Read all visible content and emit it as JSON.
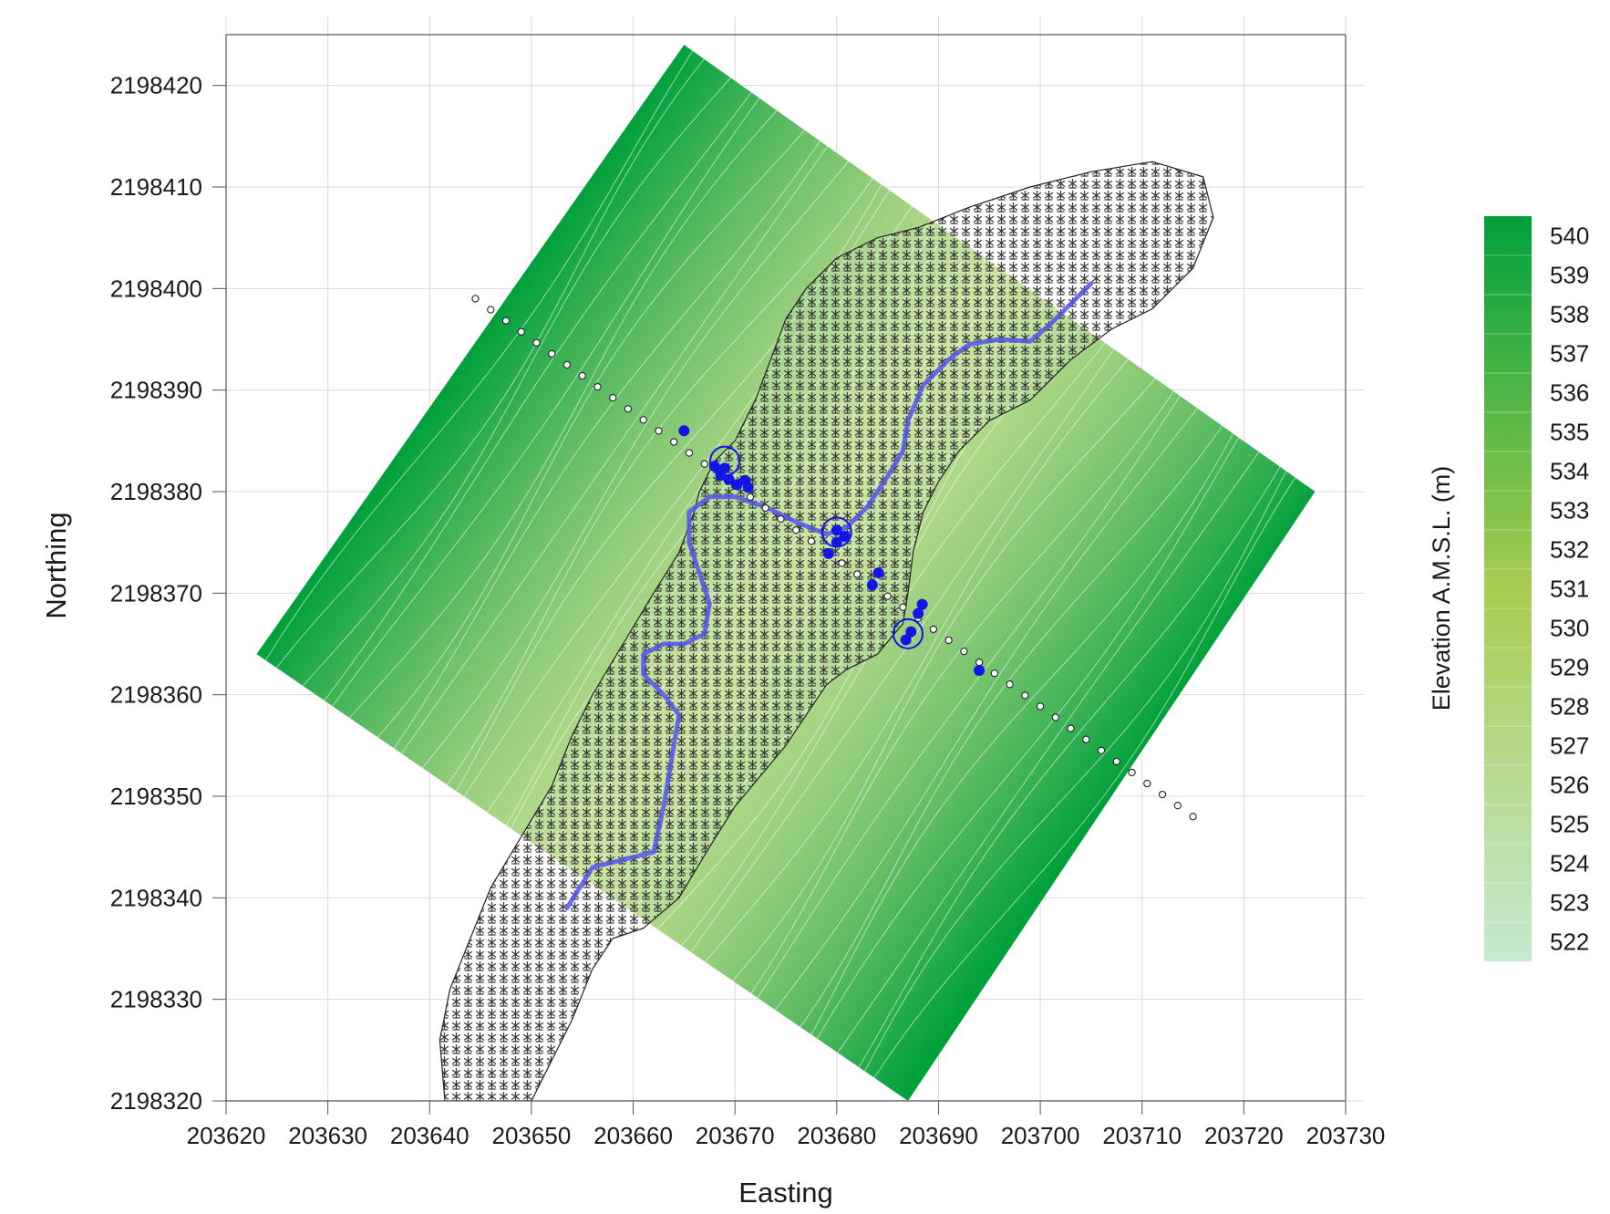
{
  "chart_data": {
    "type": "map",
    "xlabel": "Easting",
    "ylabel": "Northing",
    "xlim": [
      203620,
      203730
    ],
    "ylim": [
      2198320,
      2198425
    ],
    "x_ticks": [
      "203620",
      "203630",
      "203640",
      "203650",
      "203660",
      "203670",
      "203680",
      "203690",
      "203700",
      "203710",
      "203720",
      "203730"
    ],
    "y_ticks": [
      "2198320",
      "2198330",
      "2198340",
      "2198350",
      "2198360",
      "2198370",
      "2198380",
      "2198390",
      "2198400",
      "2198410",
      "2198420"
    ],
    "grid": true,
    "colorbar": {
      "label": "Elevation A.M.S.L. (m)",
      "levels": [
        "540",
        "539",
        "538",
        "537",
        "536",
        "535",
        "534",
        "533",
        "532",
        "531",
        "530",
        "529",
        "528",
        "527",
        "526",
        "525",
        "524",
        "523",
        "522"
      ],
      "color_high": "#00a03c",
      "color_mid": "#a8cc50",
      "color_low": "#c7e9d2"
    },
    "elevation_raster_corners": [
      {
        "x": 203665,
        "y": 2198424
      },
      {
        "x": 203727,
        "y": 2198380
      },
      {
        "x": 203687,
        "y": 2198320
      },
      {
        "x": 203623,
        "y": 2198364
      }
    ],
    "channel_color": "#5555ee",
    "stream_path": [
      [
        203653.5,
        2198339
      ],
      [
        203656,
        2198343
      ],
      [
        203660,
        2198344
      ],
      [
        203662,
        2198344.5
      ],
      [
        203663,
        2198349
      ],
      [
        203664,
        2198355
      ],
      [
        203664.5,
        2198358
      ],
      [
        203663,
        2198360
      ],
      [
        203661,
        2198362
      ],
      [
        203661,
        2198364
      ],
      [
        203663,
        2198365
      ],
      [
        203665,
        2198365
      ],
      [
        203667,
        2198366
      ],
      [
        203667.5,
        2198369
      ],
      [
        203666.5,
        2198372
      ],
      [
        203665.5,
        2198375
      ],
      [
        203665.5,
        2198378
      ],
      [
        203667.5,
        2198379.5
      ],
      [
        203670,
        2198379.5
      ],
      [
        203673,
        2198378.5
      ],
      [
        203676,
        2198377
      ],
      [
        203679,
        2198375.8
      ],
      [
        203681,
        2198376.5
      ],
      [
        203683,
        2198378.5
      ],
      [
        203685,
        2198381.5
      ],
      [
        203686.5,
        2198384
      ],
      [
        203687,
        2198387
      ],
      [
        203688.5,
        2198390.5
      ],
      [
        203691,
        2198393
      ],
      [
        203693,
        2198394.5
      ],
      [
        203696,
        2198395
      ],
      [
        203699,
        2198394.8
      ],
      [
        203701,
        2198396.5
      ],
      [
        203703,
        2198398.5
      ],
      [
        203705,
        2198400.5
      ]
    ],
    "transect": {
      "start": [
        203644.5,
        2198399
      ],
      "end": [
        203715,
        2198348
      ],
      "count": 48
    },
    "sample_points": [
      {
        "x": 203665,
        "y": 2198386
      },
      {
        "x": 203668,
        "y": 2198382.5
      },
      {
        "x": 203669,
        "y": 2198382.3
      },
      {
        "x": 203668.6,
        "y": 2198381.6
      },
      {
        "x": 203669.4,
        "y": 2198381.2
      },
      {
        "x": 203670.2,
        "y": 2198380.7
      },
      {
        "x": 203671,
        "y": 2198381.1
      },
      {
        "x": 203671.3,
        "y": 2198380.4
      },
      {
        "x": 203680,
        "y": 2198376.2
      },
      {
        "x": 203680.8,
        "y": 2198375.6
      },
      {
        "x": 203680,
        "y": 2198375
      },
      {
        "x": 203679.2,
        "y": 2198373.9
      },
      {
        "x": 203684.1,
        "y": 2198372
      },
      {
        "x": 203683.5,
        "y": 2198370.8
      },
      {
        "x": 203688.4,
        "y": 2198368.9
      },
      {
        "x": 203688,
        "y": 2198368
      },
      {
        "x": 203687.3,
        "y": 2198366.2
      },
      {
        "x": 203686.8,
        "y": 2198365.4
      },
      {
        "x": 203694,
        "y": 2198362.4
      }
    ],
    "circle_markers": [
      {
        "x": 203669,
        "y": 2198383
      },
      {
        "x": 203680,
        "y": 2198376
      },
      {
        "x": 203687,
        "y": 2198366
      }
    ],
    "vegetation_pattern": "asterisk-shrub"
  }
}
